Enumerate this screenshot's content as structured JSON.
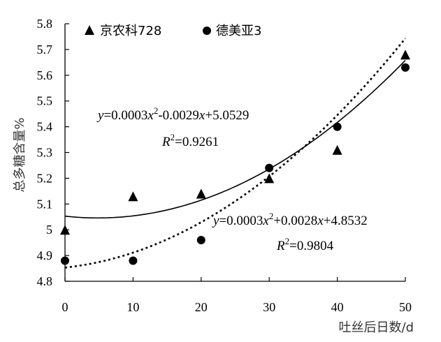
{
  "chart_data": {
    "type": "scatter",
    "title": "",
    "xlabel": "吐丝后日数/d",
    "ylabel": "总多糖含量%",
    "xlim": [
      0,
      50
    ],
    "ylim": [
      4.8,
      5.8
    ],
    "x_ticks": [
      "0",
      "10",
      "20",
      "30",
      "40",
      "50"
    ],
    "y_ticks": [
      "4.8",
      "4.9",
      "5",
      "5.1",
      "5.2",
      "5.3",
      "5.4",
      "5.5",
      "5.6",
      "5.7",
      "5.8"
    ],
    "grid": false,
    "legend_position": "top-left",
    "series": [
      {
        "name": "京农科728",
        "marker": "triangle",
        "trendline": "solid",
        "x": [
          0,
          10,
          20,
          30,
          40,
          50
        ],
        "y": [
          5.0,
          5.13,
          5.14,
          5.2,
          5.31,
          5.68
        ],
        "fit": {
          "a": 0.0003,
          "b": -0.0029,
          "c": 5.0529
        },
        "equation": {
          "y": "y",
          "eq": "=0.0003",
          "x2": "x",
          "sup2": "2",
          "mid": "-0.0029",
          "x1": "x",
          "tail": "+5.0529"
        },
        "r2": {
          "R": "R",
          "sup2": "2",
          "val": "=0.9261"
        }
      },
      {
        "name": "德美亚3",
        "marker": "circle",
        "trendline": "dotted",
        "x": [
          0,
          10,
          20,
          30,
          40,
          50
        ],
        "y": [
          4.88,
          4.88,
          4.96,
          5.24,
          5.4,
          5.63
        ],
        "fit": {
          "a": 0.0003,
          "b": 0.0028,
          "c": 4.8532
        },
        "equation": {
          "y": "y",
          "eq": "=0.0003",
          "x2": "x",
          "sup2": "2",
          "mid": "+0.0028",
          "x1": "x",
          "tail": "+4.8532"
        },
        "r2": {
          "R": "R",
          "sup2": "2",
          "val": "=0.9804"
        }
      }
    ]
  }
}
